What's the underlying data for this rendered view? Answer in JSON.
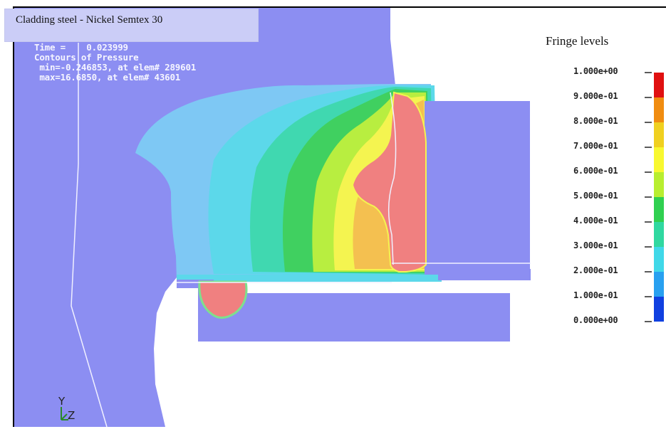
{
  "title": "Cladding steel - Nickel  Semtex 30",
  "plot_info": {
    "time": "Time =    0.023999",
    "contours": "Contours of Pressure",
    "min": " min=-0.246853, at elem# 289601",
    "max": " max=16.6850, at elem# 43601"
  },
  "legend": {
    "title": "Fringe levels",
    "levels": [
      {
        "label": "1.000e+00",
        "color": "#e01010"
      },
      {
        "label": "9.000e-01",
        "color": "#f08c10"
      },
      {
        "label": "8.000e-01",
        "color": "#f0d020"
      },
      {
        "label": "7.000e-01",
        "color": "#f8f830"
      },
      {
        "label": "6.000e-01",
        "color": "#b8ee30"
      },
      {
        "label": "5.000e-01",
        "color": "#30d050"
      },
      {
        "label": "4.000e-01",
        "color": "#30d8a0"
      },
      {
        "label": "3.000e-01",
        "color": "#40d8e8"
      },
      {
        "label": "2.000e-01",
        "color": "#28a0f0"
      },
      {
        "label": "1.000e-01",
        "color": "#1040e0"
      },
      {
        "label": "0.000e+00",
        "color": null
      }
    ]
  },
  "axis": {
    "y": "Y",
    "z": "Z"
  },
  "colors": {
    "material": "#8c8ef2",
    "peak": "#f08080",
    "background": "#ffffff"
  }
}
